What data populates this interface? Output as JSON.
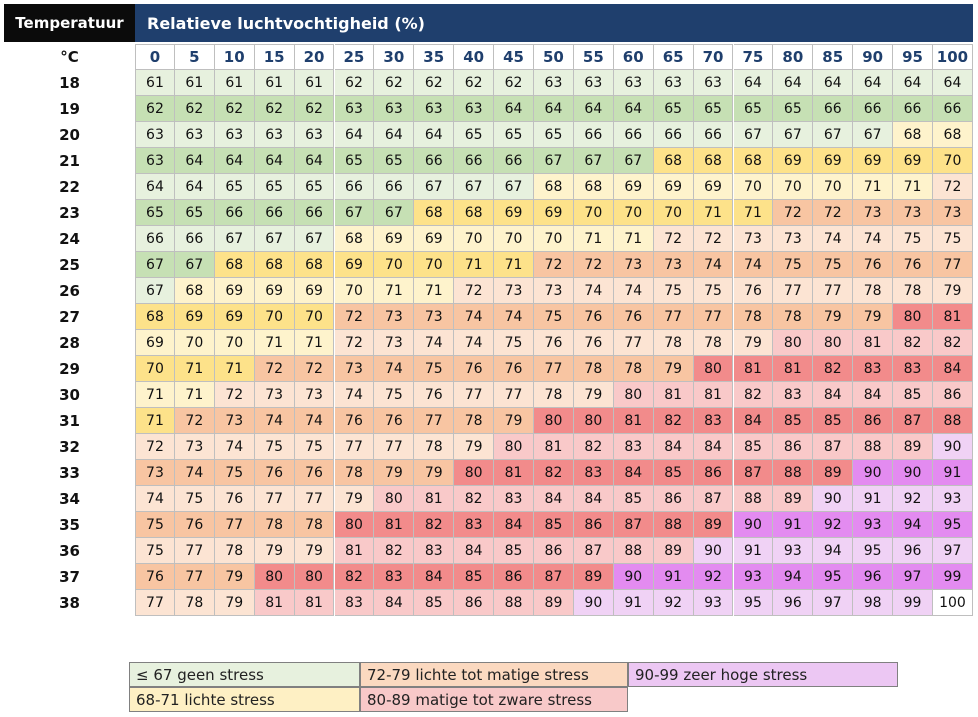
{
  "header": {
    "temperature_label": "Temperatuur",
    "humidity_label": "Relatieve luchtvochtigheid (%)",
    "unit_label": "°C"
  },
  "colors": {
    "header_temp_bg": "#0b0b0b",
    "header_rh_bg": "#1f3f6d",
    "geen_stress_dark": "#c6e0b4",
    "geen_stress_light": "#e7f1de",
    "lichte_stress_dark": "#fde28a",
    "lichte_stress_light": "#fef3cc",
    "lichte_tot_matige_dark": "#f8c5a2",
    "lichte_tot_matige_light": "#fce4d3",
    "matige_tot_zware_dark": "#f28b8b",
    "matige_tot_zware_light": "#f9c9c9",
    "zeer_hoge_dark": "#e38bf0",
    "zeer_hoge_light": "#f0d2f5",
    "max": "#ffffff"
  },
  "chart_data": {
    "type": "heatmap",
    "title": "",
    "xlabel": "Relatieve luchtvochtigheid (%)",
    "ylabel": "Temperatuur",
    "x": [
      0,
      5,
      10,
      15,
      20,
      25,
      30,
      35,
      40,
      45,
      50,
      55,
      60,
      65,
      70,
      75,
      80,
      85,
      90,
      95,
      100
    ],
    "y": [
      18,
      19,
      20,
      21,
      22,
      23,
      24,
      25,
      26,
      27,
      28,
      29,
      30,
      31,
      32,
      33,
      34,
      35,
      36,
      37,
      38
    ],
    "values": [
      [
        61,
        61,
        61,
        61,
        61,
        62,
        62,
        62,
        62,
        62,
        63,
        63,
        63,
        63,
        63,
        64,
        64,
        64,
        64,
        64,
        64
      ],
      [
        62,
        62,
        62,
        62,
        62,
        63,
        63,
        63,
        63,
        64,
        64,
        64,
        64,
        65,
        65,
        65,
        65,
        66,
        66,
        66,
        66
      ],
      [
        63,
        63,
        63,
        63,
        63,
        64,
        64,
        64,
        65,
        65,
        65,
        66,
        66,
        66,
        66,
        67,
        67,
        67,
        67,
        68,
        68
      ],
      [
        63,
        64,
        64,
        64,
        64,
        65,
        65,
        66,
        66,
        66,
        67,
        67,
        67,
        68,
        68,
        68,
        69,
        69,
        69,
        69,
        70
      ],
      [
        64,
        64,
        65,
        65,
        65,
        66,
        66,
        67,
        67,
        67,
        68,
        68,
        69,
        69,
        69,
        70,
        70,
        70,
        71,
        71,
        72
      ],
      [
        65,
        65,
        66,
        66,
        66,
        67,
        67,
        68,
        68,
        69,
        69,
        70,
        70,
        70,
        71,
        71,
        72,
        72,
        73,
        73,
        73
      ],
      [
        66,
        66,
        67,
        67,
        67,
        68,
        69,
        69,
        70,
        70,
        70,
        71,
        71,
        72,
        72,
        73,
        73,
        74,
        74,
        75,
        75
      ],
      [
        67,
        67,
        68,
        68,
        68,
        69,
        70,
        70,
        71,
        71,
        72,
        72,
        73,
        73,
        74,
        74,
        75,
        75,
        76,
        76,
        77
      ],
      [
        67,
        68,
        69,
        69,
        69,
        70,
        71,
        71,
        72,
        73,
        73,
        74,
        74,
        75,
        75,
        76,
        77,
        77,
        78,
        78,
        79
      ],
      [
        68,
        69,
        69,
        70,
        70,
        72,
        73,
        73,
        74,
        74,
        75,
        76,
        76,
        77,
        77,
        78,
        78,
        79,
        79,
        80,
        81
      ],
      [
        69,
        70,
        70,
        71,
        71,
        72,
        73,
        74,
        74,
        75,
        76,
        76,
        77,
        78,
        78,
        79,
        80,
        80,
        81,
        82,
        82
      ],
      [
        70,
        71,
        71,
        72,
        72,
        73,
        74,
        75,
        76,
        76,
        77,
        78,
        78,
        79,
        80,
        81,
        81,
        82,
        83,
        83,
        84
      ],
      [
        71,
        71,
        72,
        73,
        73,
        74,
        75,
        76,
        77,
        77,
        78,
        79,
        80,
        81,
        81,
        82,
        83,
        84,
        84,
        85,
        86
      ],
      [
        71,
        72,
        73,
        74,
        74,
        76,
        76,
        77,
        78,
        79,
        80,
        80,
        81,
        82,
        83,
        84,
        85,
        85,
        86,
        87,
        88
      ],
      [
        72,
        73,
        74,
        75,
        75,
        77,
        77,
        78,
        79,
        80,
        81,
        82,
        83,
        84,
        84,
        85,
        86,
        87,
        88,
        89,
        90
      ],
      [
        73,
        74,
        75,
        76,
        76,
        78,
        79,
        79,
        80,
        81,
        82,
        83,
        84,
        85,
        86,
        87,
        88,
        89,
        90,
        90,
        91
      ],
      [
        74,
        75,
        76,
        77,
        77,
        79,
        80,
        81,
        82,
        83,
        84,
        84,
        85,
        86,
        87,
        88,
        89,
        90,
        91,
        92,
        93
      ],
      [
        75,
        76,
        77,
        78,
        78,
        80,
        81,
        82,
        83,
        84,
        85,
        86,
        87,
        88,
        89,
        90,
        91,
        92,
        93,
        94,
        95
      ],
      [
        75,
        77,
        78,
        79,
        79,
        81,
        82,
        83,
        84,
        85,
        86,
        87,
        88,
        89,
        90,
        91,
        93,
        94,
        95,
        96,
        97
      ],
      [
        76,
        77,
        79,
        80,
        80,
        82,
        83,
        84,
        85,
        86,
        87,
        89,
        90,
        91,
        92,
        93,
        94,
        95,
        96,
        97,
        99
      ],
      [
        77,
        78,
        79,
        81,
        81,
        83,
        84,
        85,
        86,
        88,
        89,
        90,
        91,
        92,
        93,
        95,
        96,
        97,
        98,
        99,
        100
      ]
    ],
    "legend": [
      {
        "label": "≤ 67 geen stress",
        "color": "#e7f1de"
      },
      {
        "label": "72-79 lichte tot matige stress",
        "color": "#fbd9c0"
      },
      {
        "label": "90-99 zeer hoge stress",
        "color": "#ecc7f3"
      },
      {
        "label": "68-71 lichte stress",
        "color": "#fef0c4"
      },
      {
        "label": "80-89 matige tot zware stress",
        "color": "#f8c9c9"
      }
    ]
  }
}
